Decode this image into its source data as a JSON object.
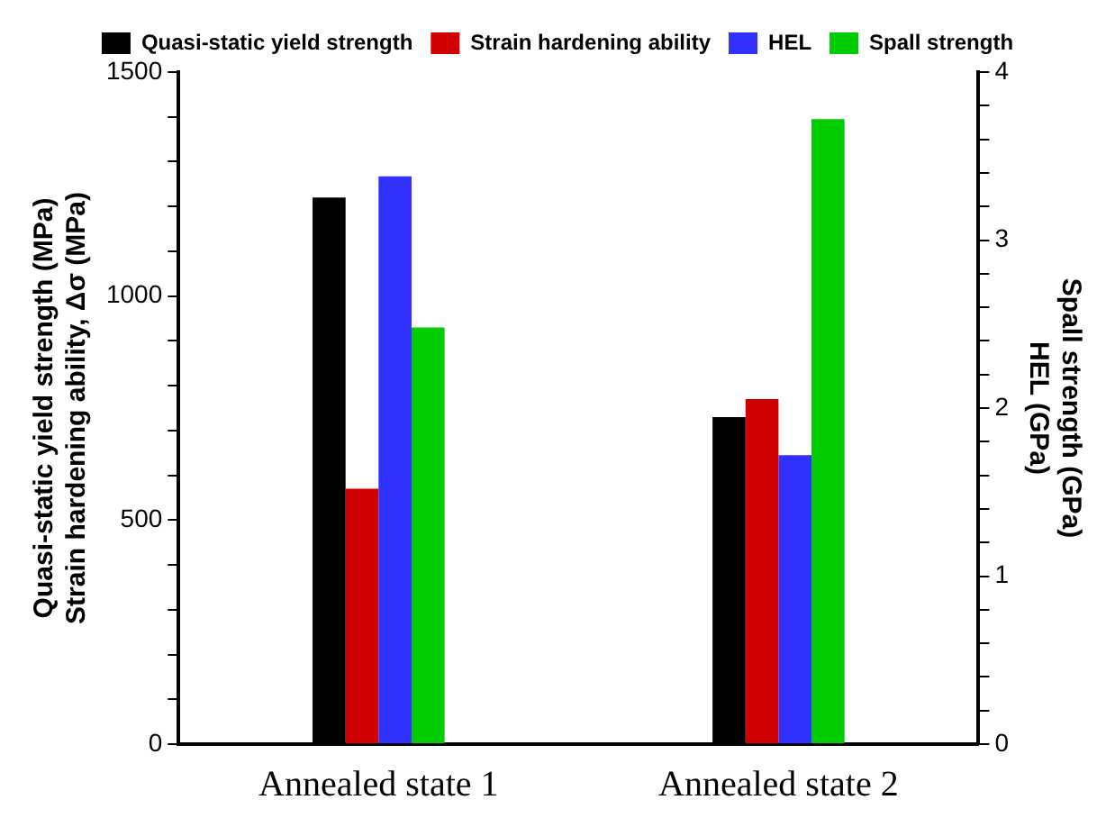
{
  "chart_data": {
    "type": "bar",
    "categories": [
      "Annealed state 1",
      "Annealed state 2"
    ],
    "series": [
      {
        "name": "Quasi-static yield strength",
        "color": "#000000",
        "values": [
          1220,
          730
        ]
      },
      {
        "name": "Strain hardening ability",
        "color": "#d00000",
        "values": [
          570,
          770
        ]
      },
      {
        "name": "HEL",
        "color": "#3030ff",
        "values": [
          3.38,
          1.72
        ],
        "axis": "y2"
      },
      {
        "name": "Spall strength",
        "color": "#00cc00",
        "values": [
          2.48,
          3.72
        ],
        "axis": "y2"
      }
    ],
    "ylabel": "Quasi-static yield strength (MPa)\nStrain hardening ability, Δσ (MPa)",
    "y2label": "Spall strength (GPa)\nHEL (GPa)",
    "ylim": [
      0,
      1500
    ],
    "yticks": [
      0,
      {
        "value": 100,
        "label": null
      },
      {
        "value": 200,
        "label": null
      },
      {
        "value": 300,
        "label": null
      },
      {
        "value": 400,
        "label": null
      },
      500,
      {
        "value": 600,
        "label": null
      },
      {
        "value": 700,
        "label": null
      },
      {
        "value": 800,
        "label": null
      },
      {
        "value": 900,
        "label": null
      },
      1000,
      {
        "value": 1100,
        "label": null
      },
      {
        "value": 1200,
        "label": null
      },
      {
        "value": 1300,
        "label": null
      },
      {
        "value": 1400,
        "label": null
      },
      1500
    ],
    "y2lim": [
      0,
      4
    ],
    "y2ticks": [
      0,
      {
        "value": 0.2,
        "label": null
      },
      {
        "value": 0.4,
        "label": null
      },
      {
        "value": 0.6,
        "label": null
      },
      {
        "value": 0.8,
        "label": null
      },
      1,
      {
        "value": 1.2,
        "label": null
      },
      {
        "value": 1.4,
        "label": null
      },
      {
        "value": 1.6,
        "label": null
      },
      {
        "value": 1.8,
        "label": null
      },
      2,
      {
        "value": 2.2,
        "label": null
      },
      {
        "value": 2.4,
        "label": null
      },
      {
        "value": 2.6,
        "label": null
      },
      {
        "value": 2.8,
        "label": null
      },
      3,
      {
        "value": 3.2,
        "label": null
      },
      {
        "value": 3.4,
        "label": null
      },
      {
        "value": 3.6,
        "label": null
      },
      {
        "value": 3.8,
        "label": null
      },
      4
    ],
    "grid": false,
    "legend": "top"
  }
}
